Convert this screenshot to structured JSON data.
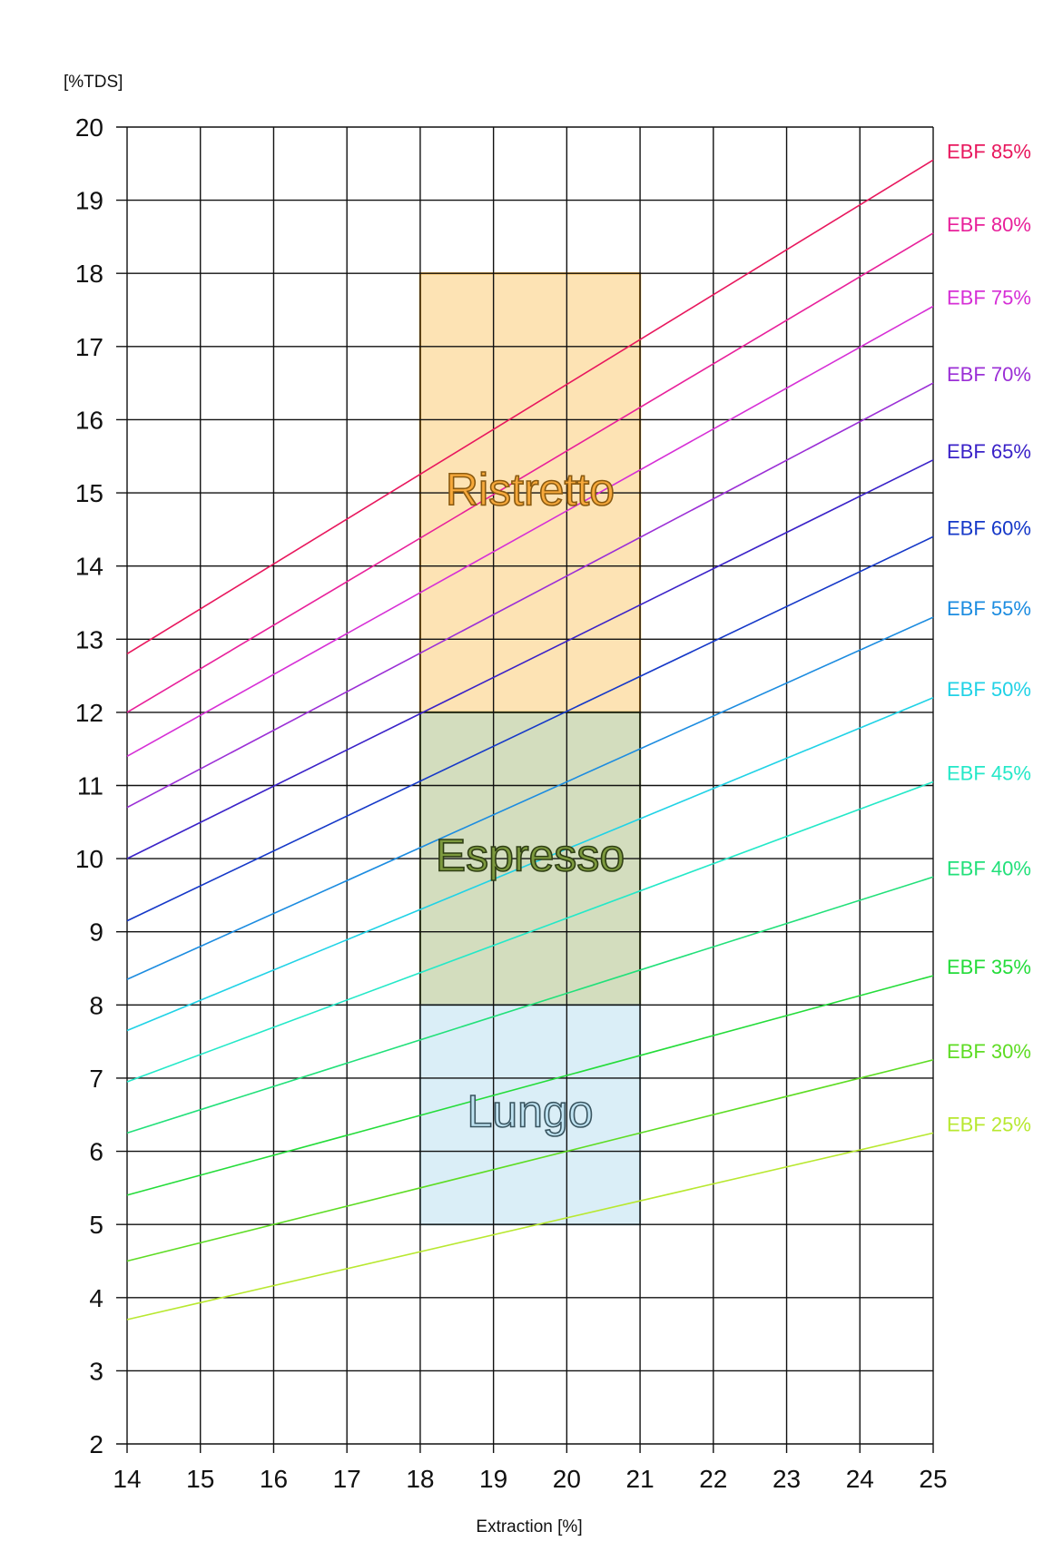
{
  "chart_data": {
    "type": "line",
    "title": "",
    "xlabel": "Extraction [%]",
    "ylabel": "[%TDS]",
    "xlim": [
      14,
      25
    ],
    "ylim": [
      2,
      20
    ],
    "grid": true,
    "x_ticks": [
      "14",
      "15",
      "16",
      "17",
      "18",
      "19",
      "20",
      "21",
      "22",
      "23",
      "24",
      "25"
    ],
    "y_ticks": [
      "2",
      "3",
      "4",
      "5",
      "6",
      "7",
      "8",
      "9",
      "10",
      "11",
      "12",
      "13",
      "14",
      "15",
      "16",
      "17",
      "18",
      "19",
      "20"
    ],
    "legend_placement": "right, at line ends",
    "zones": [
      {
        "label": "Ristretto",
        "x": [
          18,
          21
        ],
        "y": [
          12,
          18
        ],
        "fill": "#FDE3B4",
        "stroke": "#F5A623",
        "text_fill": "#F7A93B",
        "text_stroke": "#8A5A10"
      },
      {
        "label": "Espresso",
        "x": [
          18,
          21
        ],
        "y": [
          8,
          12
        ],
        "fill": "#D3DDBE",
        "stroke": "#6E7F3A",
        "text_fill": "#7D9A3E",
        "text_stroke": "#2F3F14"
      },
      {
        "label": "Lungo",
        "x": [
          18,
          21
        ],
        "y": [
          5,
          8
        ],
        "fill": "#DAEEF7",
        "stroke": "#9AB8C4",
        "text_fill": "#BFE3F2",
        "text_stroke": "#3A5560"
      }
    ],
    "series": [
      {
        "name": "EBF 85%",
        "color": "#E8175D",
        "x": [
          14,
          25
        ],
        "y": [
          12.8,
          19.55
        ]
      },
      {
        "name": "EBF 80%",
        "color": "#E8209A",
        "x": [
          14,
          25
        ],
        "y": [
          12.0,
          18.55
        ]
      },
      {
        "name": "EBF 75%",
        "color": "#D62FD6",
        "x": [
          14,
          25
        ],
        "y": [
          11.4,
          17.55
        ]
      },
      {
        "name": "EBF 70%",
        "color": "#9B2FD6",
        "x": [
          14,
          25
        ],
        "y": [
          10.7,
          16.5
        ]
      },
      {
        "name": "EBF 65%",
        "color": "#3A22C8",
        "x": [
          14,
          25
        ],
        "y": [
          10.0,
          15.45
        ]
      },
      {
        "name": "EBF 60%",
        "color": "#1538C8",
        "x": [
          14,
          25
        ],
        "y": [
          9.15,
          14.4
        ]
      },
      {
        "name": "EBF 55%",
        "color": "#1C8CE0",
        "x": [
          14,
          25
        ],
        "y": [
          8.35,
          13.3
        ]
      },
      {
        "name": "EBF 50%",
        "color": "#20D2E6",
        "x": [
          14,
          25
        ],
        "y": [
          7.65,
          12.2
        ]
      },
      {
        "name": "EBF 45%",
        "color": "#24E8C8",
        "x": [
          14,
          25
        ],
        "y": [
          6.95,
          11.05
        ]
      },
      {
        "name": "EBF 40%",
        "color": "#22E07A",
        "x": [
          14,
          25
        ],
        "y": [
          6.25,
          9.75
        ]
      },
      {
        "name": "EBF 35%",
        "color": "#24DC3A",
        "x": [
          14,
          25
        ],
        "y": [
          5.4,
          8.4
        ]
      },
      {
        "name": "EBF 30%",
        "color": "#5EDC24",
        "x": [
          14,
          25
        ],
        "y": [
          4.5,
          7.25
        ]
      },
      {
        "name": "EBF 25%",
        "color": "#B8E830",
        "x": [
          14,
          25
        ],
        "y": [
          3.7,
          6.25
        ]
      }
    ]
  }
}
